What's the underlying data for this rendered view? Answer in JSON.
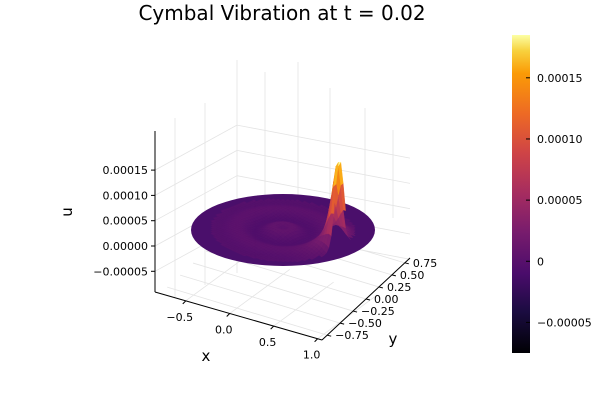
{
  "chart_data": {
    "type": "surface",
    "title": "Cymbal Vibration at t = 0.02",
    "xlabel": "x",
    "ylabel": "y",
    "zlabel": "u",
    "xlim": [
      -0.85,
      1.05
    ],
    "ylim": [
      -0.85,
      0.85
    ],
    "zlim": [
      -8e-05,
      0.00019
    ],
    "x_ticks": [
      -0.5,
      0.0,
      0.5,
      1.0
    ],
    "x_tick_labels": [
      "−0.5",
      "0.0",
      "0.5",
      "1.0"
    ],
    "y_ticks": [
      -0.75,
      -0.5,
      -0.25,
      0.0,
      0.25,
      0.5,
      0.75
    ],
    "y_tick_labels": [
      "−0.75",
      "−0.50",
      "−0.25",
      "0.00",
      "0.25",
      "0.50",
      "0.75"
    ],
    "z_ticks": [
      -5e-05,
      0.0,
      5e-05,
      0.0001,
      0.00015
    ],
    "z_tick_labels": [
      "−0.00005",
      "0.00000",
      "0.00005",
      "0.00010",
      "0.00015"
    ],
    "colorbar": {
      "colormap": "inferno",
      "range": [
        -7.5e-05,
        0.000185
      ],
      "ticks": [
        -5e-05,
        0.0,
        5e-05,
        0.0001,
        0.00015
      ],
      "tick_labels": [
        "−0.00005",
        "0",
        "0.00005",
        "0.00010",
        "0.00015"
      ]
    },
    "surface": {
      "domain": "disk",
      "radius": 0.85,
      "peak": {
        "x": 0.85,
        "y": 0.1,
        "u": 0.000175
      },
      "baseline_u": 0.0
    },
    "grid": true,
    "legend": "none"
  }
}
